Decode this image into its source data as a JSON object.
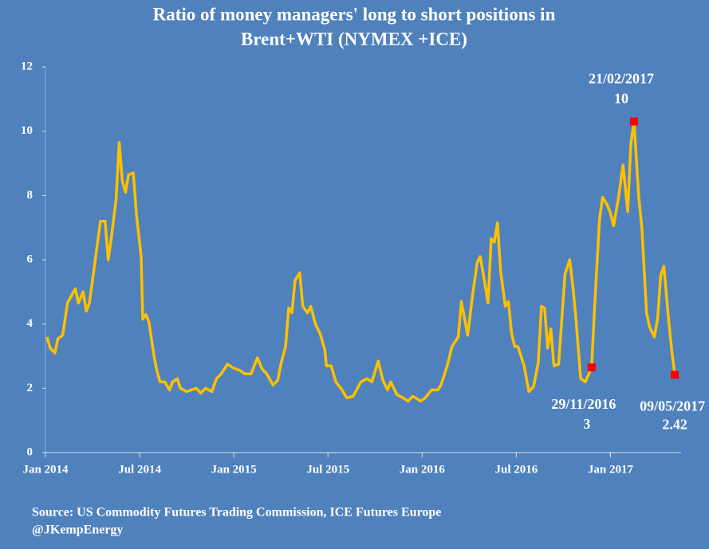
{
  "chart_data": {
    "type": "line",
    "title": [
      "Ratio of  money managers' long to short positions in",
      "Brent+WTI (NYMEX +ICE)"
    ],
    "source": [
      "Source: US Commodity Futures Trading Commission, ICE Futures Europe",
      "@JKempEnergy"
    ],
    "color": "#ffc000",
    "marker_color": "#ff0000",
    "xlim": [
      0,
      40.5
    ],
    "xticks": [
      {
        "value": 0,
        "label": "Jan 2014"
      },
      {
        "value": 6,
        "label": "Jul 2014"
      },
      {
        "value": 12,
        "label": "Jan 2015"
      },
      {
        "value": 18,
        "label": "Jul 2015"
      },
      {
        "value": 24,
        "label": "Jan 2016"
      },
      {
        "value": 30,
        "label": "Jul 2016"
      },
      {
        "value": 36,
        "label": "Jan 2017"
      }
    ],
    "ylim": [
      0,
      12
    ],
    "yticks": [
      0,
      2,
      4,
      6,
      8,
      10,
      12
    ],
    "x": [
      0.1,
      0.3,
      0.6,
      0.8,
      1.1,
      1.4,
      1.9,
      2.1,
      2.4,
      2.6,
      2.8,
      3.2,
      3.5,
      3.8,
      4.0,
      4.2,
      4.5,
      4.7,
      4.9,
      5.1,
      5.3,
      5.6,
      5.8,
      6.1,
      6.2,
      6.4,
      6.6,
      6.9,
      7.1,
      7.3,
      7.6,
      7.9,
      8.1,
      8.4,
      8.6,
      9.0,
      9.6,
      9.9,
      10.2,
      10.6,
      10.9,
      11.2,
      11.6,
      11.9,
      12.4,
      12.7,
      13.1,
      13.5,
      13.8,
      14.1,
      14.5,
      14.8,
      15.0,
      15.3,
      15.5,
      15.7,
      15.9,
      16.2,
      16.4,
      16.7,
      16.9,
      17.2,
      17.5,
      17.8,
      17.9,
      18.2,
      18.5,
      18.9,
      19.2,
      19.6,
      20.1,
      20.5,
      20.8,
      21.2,
      21.5,
      21.8,
      22.0,
      22.4,
      22.8,
      23.1,
      23.4,
      23.6,
      23.9,
      24.2,
      24.6,
      25.0,
      25.2,
      25.6,
      25.9,
      26.3,
      26.5,
      26.9,
      27.2,
      27.5,
      27.7,
      27.9,
      28.2,
      28.4,
      28.6,
      28.8,
      29.0,
      29.3,
      29.5,
      29.7,
      29.9,
      30.1,
      30.5,
      30.8,
      31.1,
      31.4,
      31.6,
      31.8,
      32.0,
      32.2,
      32.4,
      32.7,
      33.1,
      33.4,
      33.6,
      33.8,
      34.1,
      34.4,
      34.8,
      35.0,
      35.3,
      35.5,
      35.8,
      36.0,
      36.2,
      36.5,
      36.8,
      37.1,
      37.3,
      37.5,
      37.8,
      38.0,
      38.3,
      38.5,
      38.8,
      39.0,
      39.2,
      39.4,
      39.7,
      39.9,
      40.1
    ],
    "values": [
      3.6,
      3.25,
      3.1,
      3.55,
      3.65,
      4.65,
      5.1,
      4.65,
      5.0,
      4.4,
      4.65,
      6.1,
      7.2,
      7.2,
      6.0,
      6.7,
      7.9,
      9.65,
      8.45,
      8.1,
      8.65,
      8.7,
      7.4,
      6.1,
      4.15,
      4.3,
      4.05,
      3.05,
      2.55,
      2.2,
      2.2,
      1.95,
      2.2,
      2.3,
      2.0,
      1.9,
      2.0,
      1.85,
      2.0,
      1.9,
      2.3,
      2.45,
      2.75,
      2.65,
      2.55,
      2.45,
      2.45,
      2.95,
      2.6,
      2.45,
      2.1,
      2.25,
      2.75,
      3.3,
      4.5,
      4.35,
      5.35,
      5.6,
      4.55,
      4.35,
      4.55,
      4.0,
      3.7,
      3.2,
      2.7,
      2.7,
      2.2,
      1.95,
      1.7,
      1.75,
      2.2,
      2.3,
      2.2,
      2.85,
      2.25,
      1.95,
      2.2,
      1.8,
      1.7,
      1.6,
      1.75,
      1.7,
      1.6,
      1.7,
      1.95,
      1.95,
      2.1,
      2.7,
      3.3,
      3.6,
      4.7,
      3.65,
      4.85,
      5.9,
      6.1,
      5.55,
      4.65,
      6.65,
      6.55,
      7.15,
      5.65,
      4.55,
      4.7,
      3.7,
      3.3,
      3.3,
      2.7,
      1.9,
      2.05,
      2.8,
      4.55,
      4.5,
      3.25,
      3.85,
      2.7,
      2.75,
      5.55,
      6.0,
      5.2,
      4.15,
      2.3,
      2.2,
      2.65,
      4.65,
      7.25,
      7.95,
      7.7,
      7.45,
      7.05,
      7.9,
      8.95,
      7.5,
      9.6,
      10.3,
      7.95,
      7.0,
      4.35,
      3.9,
      3.6,
      4.15,
      5.5,
      5.8,
      4.15,
      3.2,
      2.42
    ],
    "annotations": [
      {
        "label": "29/11/2016",
        "x": 34.8,
        "value": 2.65,
        "value_label": "3"
      },
      {
        "label": "21/02/2017",
        "x": 37.5,
        "value": 10.3,
        "value_label": "10"
      },
      {
        "label": "09/05/2017",
        "x": 40.1,
        "value": 2.42,
        "value_label": "2.42"
      }
    ]
  }
}
